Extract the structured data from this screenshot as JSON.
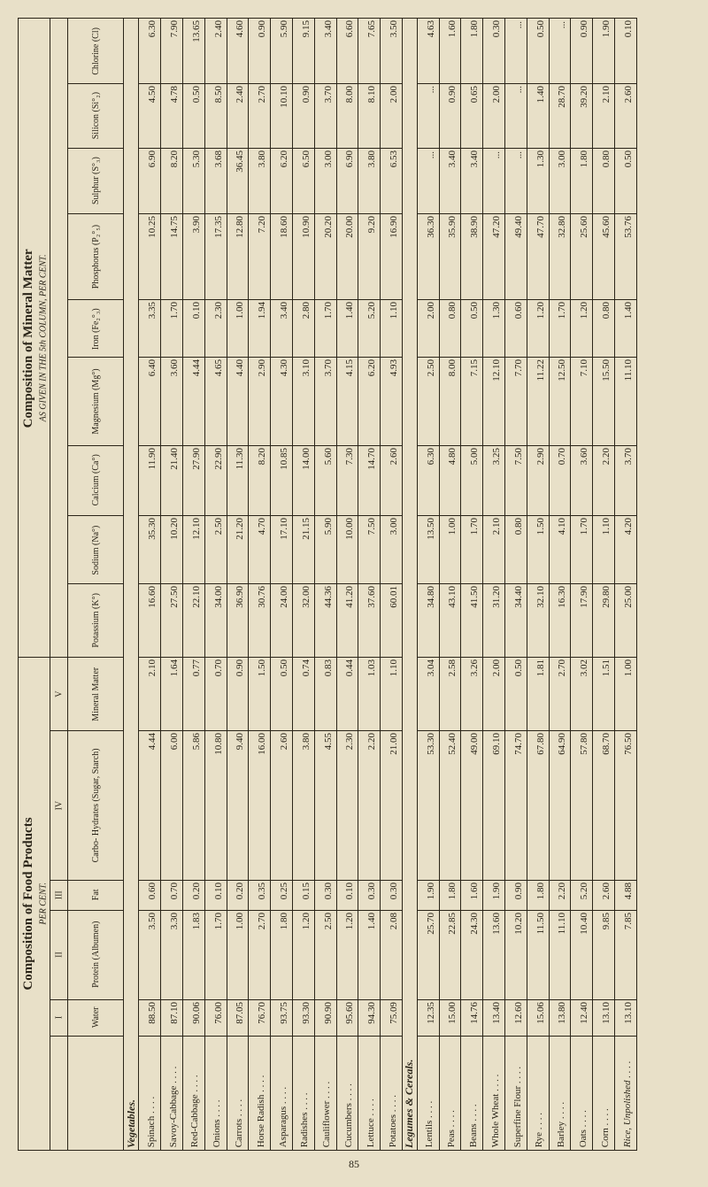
{
  "page_number": "85",
  "table": {
    "main_headers": [
      {
        "title": "Composition of Mineral Matter",
        "subtitle": "AS GIVEN IN THE 5th COLUMN, PER CENT."
      },
      {
        "title": "Composition of Food Products",
        "subtitle": "PER CENT."
      }
    ],
    "roman_numerals": [
      "I",
      "II",
      "III",
      "IV",
      "V"
    ],
    "column_labels": [
      "Chlorine (Cl)",
      "Silicon (Si°₂)",
      "Sulphur (S°₃)",
      "Phosphorus (P₂°₅)",
      "Iron (Fe₂°₃)",
      "Magnesium (Mg°)",
      "Calcium (Ca°)",
      "Sodium (Na°)",
      "Potassium (K°)",
      "Mineral Matter",
      "Carbo- Hydrates (Sugar, Starch)",
      "Fat",
      "Protein (Albumen)",
      "Water"
    ],
    "groups": [
      {
        "label": "Vegetables.",
        "items": [
          {
            "name": "Spinach",
            "values": [
              "6.30",
              "4.50",
              "6.90",
              "10.25",
              "3.35",
              "6.40",
              "11.90",
              "35.30",
              "16.60",
              "2.10",
              "4.44",
              "0.60",
              "3.50",
              "88.50"
            ]
          },
          {
            "name": "Savoy-Cabbage",
            "values": [
              "7.90",
              "4.78",
              "8.20",
              "14.75",
              "1.70",
              "3.60",
              "21.40",
              "10.20",
              "27.50",
              "1.64",
              "6.00",
              "0.70",
              "3.30",
              "87.10"
            ]
          },
          {
            "name": "Red-Cabbage",
            "values": [
              "13.65",
              "0.50",
              "5.30",
              "3.90",
              "0.10",
              "4.44",
              "27.90",
              "12.10",
              "22.10",
              "0.77",
              "5.86",
              "0.20",
              "1.83",
              "90.06"
            ]
          },
          {
            "name": "Onions",
            "values": [
              "2.40",
              "8.50",
              "3.68",
              "17.35",
              "2.30",
              "4.65",
              "22.90",
              "2.50",
              "34.00",
              "0.70",
              "10.80",
              "0.10",
              "1.70",
              "76.00"
            ]
          },
          {
            "name": "Carrots",
            "values": [
              "4.60",
              "2.40",
              "36.45",
              "12.80",
              "1.00",
              "4.40",
              "11.30",
              "21.20",
              "36.90",
              "0.90",
              "9.40",
              "0.20",
              "1.00",
              "87.05"
            ]
          },
          {
            "name": "Horse Radish",
            "values": [
              "0.90",
              "2.70",
              "3.80",
              "7.20",
              "1.94",
              "2.90",
              "8.20",
              "4.70",
              "30.76",
              "1.50",
              "16.00",
              "0.35",
              "2.70",
              "76.70"
            ]
          },
          {
            "name": "Asparagus",
            "values": [
              "5.90",
              "10.10",
              "6.20",
              "18.60",
              "3.40",
              "4.30",
              "10.85",
              "17.10",
              "24.00",
              "0.50",
              "2.60",
              "0.25",
              "1.80",
              "93.75"
            ]
          },
          {
            "name": "Radishes",
            "values": [
              "9.15",
              "0.90",
              "6.50",
              "10.90",
              "2.80",
              "3.10",
              "14.00",
              "21.15",
              "32.00",
              "0.74",
              "3.80",
              "0.15",
              "1.20",
              "93.30"
            ]
          },
          {
            "name": "Cauliflower",
            "values": [
              "3.40",
              "3.70",
              "3.00",
              "20.20",
              "1.70",
              "3.70",
              "5.60",
              "5.90",
              "44.36",
              "0.83",
              "4.55",
              "0.30",
              "2.50",
              "90.90"
            ]
          },
          {
            "name": "Cucumbers",
            "values": [
              "6.60",
              "8.00",
              "6.90",
              "20.00",
              "1.40",
              "4.15",
              "7.30",
              "10.00",
              "41.20",
              "0.44",
              "2.30",
              "0.10",
              "1.20",
              "95.60"
            ]
          },
          {
            "name": "Lettuce",
            "values": [
              "7.65",
              "8.10",
              "3.80",
              "9.20",
              "5.20",
              "6.20",
              "14.70",
              "7.50",
              "37.60",
              "1.03",
              "2.20",
              "0.30",
              "1.40",
              "94.30"
            ]
          },
          {
            "name": "Potatoes",
            "values": [
              "3.50",
              "2.00",
              "6.53",
              "16.90",
              "1.10",
              "4.93",
              "2.60",
              "3.00",
              "60.01",
              "1.10",
              "21.00",
              "0.30",
              "2.08",
              "75.09"
            ]
          }
        ]
      },
      {
        "label": "Legumes & Cereals.",
        "items": [
          {
            "name": "Lentils",
            "values": [
              "4.63",
              "...",
              "...",
              "36.30",
              "2.00",
              "2.50",
              "6.30",
              "13.50",
              "34.80",
              "3.04",
              "53.30",
              "1.90",
              "25.70",
              "12.35"
            ]
          },
          {
            "name": "Peas",
            "values": [
              "1.60",
              "0.90",
              "3.40",
              "35.90",
              "0.80",
              "8.00",
              "4.80",
              "1.00",
              "43.10",
              "2.58",
              "52.40",
              "1.80",
              "22.85",
              "15.00"
            ]
          },
          {
            "name": "Beans",
            "values": [
              "1.80",
              "0.65",
              "3.40",
              "38.90",
              "0.50",
              "7.15",
              "5.00",
              "1.70",
              "41.50",
              "3.26",
              "49.00",
              "1.60",
              "24.30",
              "14.76"
            ]
          },
          {
            "name": "Whole Wheat",
            "values": [
              "0.30",
              "2.00",
              "...",
              "47.20",
              "1.30",
              "12.10",
              "3.25",
              "2.10",
              "31.20",
              "2.00",
              "69.10",
              "1.90",
              "13.60",
              "13.40"
            ]
          },
          {
            "name": "Superfine Flour",
            "values": [
              "...",
              "...",
              "...",
              "49.40",
              "0.60",
              "7.70",
              "7.50",
              "0.80",
              "34.40",
              "0.50",
              "74.70",
              "0.90",
              "10.20",
              "12.60"
            ]
          },
          {
            "name": "Rye",
            "values": [
              "0.50",
              "1.40",
              "1.30",
              "47.70",
              "1.20",
              "11.22",
              "2.90",
              "1.50",
              "32.10",
              "1.81",
              "67.80",
              "1.80",
              "11.50",
              "15.06"
            ]
          },
          {
            "name": "Barley",
            "values": [
              "...",
              "28.70",
              "3.00",
              "32.80",
              "1.70",
              "12.50",
              "0.70",
              "4.10",
              "16.30",
              "2.70",
              "64.90",
              "2.20",
              "11.10",
              "13.80"
            ]
          },
          {
            "name": "Oats",
            "values": [
              "0.90",
              "39.20",
              "1.80",
              "25.60",
              "1.20",
              "7.10",
              "3.60",
              "1.70",
              "17.90",
              "3.02",
              "57.80",
              "5.20",
              "10.40",
              "12.40"
            ]
          },
          {
            "name": "Corn",
            "values": [
              "1.90",
              "2.10",
              "0.80",
              "45.60",
              "0.80",
              "15.50",
              "2.20",
              "1.10",
              "29.80",
              "1.51",
              "68.70",
              "2.60",
              "9.85",
              "13.10"
            ]
          },
          {
            "name": "Rice, Unpolished",
            "italic": true,
            "values": [
              "0.10",
              "2.60",
              "0.50",
              "53.76",
              "1.40",
              "11.10",
              "3.70",
              "4.20",
              "25.00",
              "1.00",
              "76.50",
              "4.88",
              "7.85",
              "13.10"
            ]
          }
        ]
      }
    ]
  }
}
